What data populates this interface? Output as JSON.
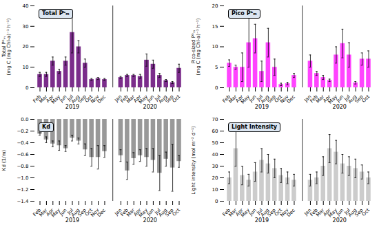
{
  "chart_data": [
    {
      "type": "bar",
      "title": "Total Pᵇₘ",
      "ylabel": "Total Pᵇₘ\n(mg C (mg Chl-a)⁻¹ h⁻¹)",
      "color": "#7B2D8B",
      "title_background_color": "#DCE6F1",
      "series": [
        {
          "name": "2019",
          "categories": [
            "Feb",
            "Mar",
            "Apr",
            "May",
            "Jun",
            "Jul",
            "Aug",
            "Sep",
            "Oct",
            "Nov",
            "Dec"
          ],
          "values": [
            6.5,
            6.5,
            13.0,
            8.0,
            13.0,
            27.0,
            20.0,
            12.0,
            4.0,
            4.5,
            4.0
          ],
          "errors": [
            1.0,
            1.0,
            2.0,
            1.0,
            2.0,
            10.0,
            3.0,
            2.0,
            0.5,
            0.5,
            0.5
          ]
        },
        {
          "name": "2020",
          "categories": [
            "Jan",
            "Feb",
            "Mar",
            "Apr",
            "May",
            "Jun",
            "Jul",
            "Aug",
            "Sep",
            "Oct"
          ],
          "values": [
            5.0,
            6.0,
            6.0,
            5.5,
            13.5,
            11.5,
            6.0,
            3.5,
            2.5,
            9.5
          ],
          "errors": [
            0.5,
            0.5,
            0.5,
            1.0,
            3.0,
            2.0,
            1.0,
            0.5,
            0.5,
            2.0
          ]
        }
      ],
      "ylim": [
        0,
        40
      ],
      "yticks": [
        0,
        10,
        20,
        30,
        40
      ],
      "grid": false
    },
    {
      "type": "bar",
      "title": "Pico Pᵇₘ",
      "ylabel": "Pico-sized Pᵇₘ\n(mg C (mg Chl-a)⁻¹ h⁻¹)",
      "color": "#FF44FF",
      "title_background_color": "#DCE6F1",
      "series": [
        {
          "name": "2019",
          "categories": [
            "Feb",
            "Mar",
            "Apr",
            "May",
            "Jun",
            "Jul",
            "Aug",
            "Sep",
            "Oct",
            "Nov",
            "Dec"
          ],
          "values": [
            6.0,
            5.0,
            5.0,
            11.0,
            12.0,
            4.0,
            11.0,
            5.0,
            0.8,
            1.0,
            3.0
          ],
          "errors": [
            0.8,
            0.5,
            3.5,
            6.0,
            3.5,
            2.5,
            3.5,
            2.0,
            0.3,
            0.3,
            0.5
          ]
        },
        {
          "name": "2020",
          "categories": [
            "Jan",
            "Feb",
            "Mar",
            "Apr",
            "May",
            "Jun",
            "Jul",
            "Aug",
            "Sep",
            "Oct"
          ],
          "values": [
            6.5,
            3.5,
            2.5,
            1.8,
            8.0,
            10.8,
            8.0,
            1.2,
            7.0,
            7.0
          ],
          "errors": [
            1.5,
            0.5,
            0.5,
            0.3,
            2.0,
            3.5,
            3.0,
            0.3,
            1.5,
            2.0
          ]
        }
      ],
      "ylim": [
        0,
        20
      ],
      "yticks": [
        0,
        5,
        10,
        15,
        20
      ],
      "grid": false
    },
    {
      "type": "bar",
      "title": "Kd",
      "ylabel": "Kd (1/m)",
      "color": "#999999",
      "title_background_color": "#DCE6F1",
      "series": [
        {
          "name": "2019",
          "categories": [
            "Feb",
            "Mar",
            "Apr",
            "May",
            "Jun",
            "Jul",
            "Aug",
            "Sep",
            "Oct",
            "Nov",
            "Dec"
          ],
          "values": [
            -0.25,
            -0.35,
            -0.42,
            -0.45,
            -0.5,
            -0.32,
            -0.37,
            -0.52,
            -0.65,
            -0.65,
            -0.55
          ],
          "errors": [
            0.02,
            0.05,
            0.05,
            0.08,
            0.05,
            0.05,
            0.05,
            0.1,
            0.15,
            0.2,
            0.1
          ]
        },
        {
          "name": "2020",
          "categories": [
            "Jan",
            "Feb",
            "Mar",
            "Apr",
            "May",
            "Jun",
            "Jul",
            "Aug",
            "Sep",
            "Oct"
          ],
          "values": [
            -0.62,
            -0.88,
            -0.67,
            -0.62,
            -0.65,
            -0.7,
            -0.92,
            -0.68,
            -0.83,
            -0.72
          ],
          "errors": [
            0.1,
            0.15,
            0.1,
            0.1,
            0.15,
            0.2,
            0.3,
            0.12,
            0.4,
            0.1
          ]
        }
      ],
      "ylim": [
        -1.4,
        0.0
      ],
      "yticks": [
        {
          "value": -1.4,
          "label": "−1.4"
        },
        {
          "value": -1.2,
          "label": "−1.2"
        },
        {
          "value": -1.0,
          "label": "−1.0"
        },
        {
          "value": -0.8,
          "label": "−0.8"
        },
        {
          "value": -0.6,
          "label": "−0.6"
        },
        {
          "value": -0.4,
          "label": "−0.4"
        },
        {
          "value": -0.2,
          "label": "−0.2"
        },
        {
          "value": 0.0,
          "label": "0.0"
        }
      ],
      "grid": false
    },
    {
      "type": "bar",
      "title": "Light Intensity",
      "ylabel": "Light intensity (mol m⁻² d⁻¹)",
      "color": "#CCCCCC",
      "title_background_color": "#DCE6F1",
      "series": [
        {
          "name": "2019",
          "categories": [
            "Feb",
            "Mar",
            "Apr",
            "May",
            "Jun",
            "Jul",
            "Aug",
            "Sep",
            "Oct",
            "Nov",
            "Dec"
          ],
          "values": [
            20.0,
            45.0,
            22.0,
            18.0,
            25.0,
            35.0,
            32.0,
            28.0,
            22.0,
            20.0,
            18.0
          ],
          "errors": [
            5.0,
            15.0,
            8.0,
            5.0,
            8.0,
            10.0,
            8.0,
            8.0,
            6.0,
            5.0,
            5.0
          ]
        },
        {
          "name": "2020",
          "categories": [
            "Jan",
            "Feb",
            "Mar",
            "Apr",
            "May",
            "Jun",
            "Jul",
            "Aug",
            "Sep",
            "Oct"
          ],
          "values": [
            18.0,
            20.0,
            30.0,
            45.0,
            42.0,
            32.0,
            30.0,
            28.0,
            25.0,
            20.0
          ],
          "errors": [
            5.0,
            5.0,
            8.0,
            12.0,
            10.0,
            8.0,
            8.0,
            8.0,
            6.0,
            5.0
          ]
        }
      ],
      "ylim": [
        0,
        70
      ],
      "yticks": [
        0,
        10,
        20,
        30,
        40,
        50,
        60,
        70
      ],
      "grid": false
    }
  ]
}
